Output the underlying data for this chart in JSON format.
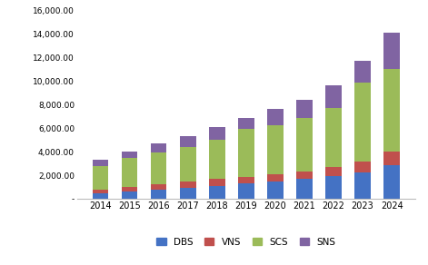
{
  "years": [
    2014,
    2015,
    2016,
    2017,
    2018,
    2019,
    2020,
    2021,
    2022,
    2023,
    2024
  ],
  "DBS": [
    500,
    620,
    780,
    920,
    1100,
    1280,
    1500,
    1700,
    1900,
    2250,
    2850
  ],
  "VNS": [
    300,
    380,
    430,
    520,
    600,
    600,
    620,
    650,
    780,
    950,
    1150
  ],
  "SCS": [
    2000,
    2450,
    2700,
    2950,
    3350,
    4050,
    4100,
    4550,
    5050,
    6700,
    7000
  ],
  "SNS": [
    480,
    580,
    780,
    950,
    1050,
    950,
    1400,
    1550,
    1950,
    1850,
    3150
  ],
  "colors": {
    "DBS": "#4472c4",
    "VNS": "#c0504d",
    "SCS": "#9bbb59",
    "SNS": "#8064a2"
  },
  "ylim": [
    0,
    16000
  ],
  "yticks": [
    0,
    2000,
    4000,
    6000,
    8000,
    10000,
    12000,
    14000,
    16000
  ],
  "background_color": "#ffffff",
  "legend_labels": [
    "DBS",
    "VNS",
    "SCS",
    "SNS"
  ],
  "bar_width": 0.55,
  "figsize": [
    4.71,
    2.92
  ],
  "dpi": 100
}
